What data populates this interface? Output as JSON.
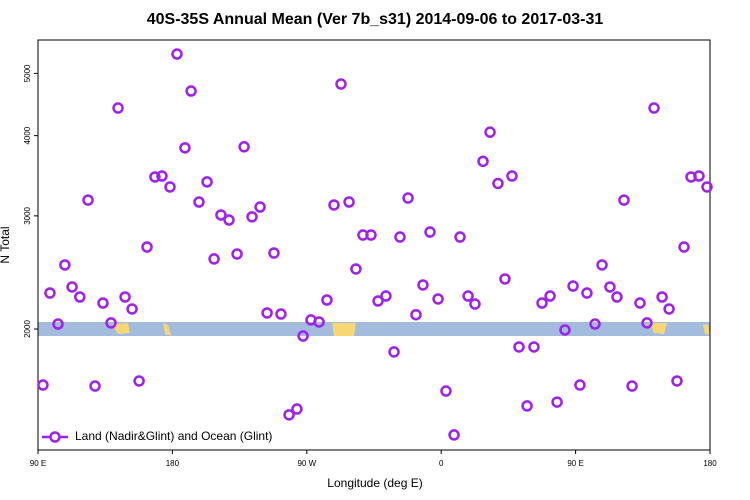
{
  "chart_data": {
    "type": "scatter",
    "title": "40S-35S Annual Mean (Ver 7b_s31)   2014-09-06 to 2017-03-31",
    "xlabel": "Longitude (deg E)",
    "ylabel": "N Total",
    "x": [
      93.3,
      98,
      103.4,
      108,
      112.8,
      118,
      123.5,
      128.2,
      133.5,
      138.9,
      143.6,
      148.3,
      153,
      157.7,
      163,
      168.3,
      173,
      178.4,
      183.1,
      188.4,
      192.5,
      197.8,
      203.2,
      207.9,
      212.5,
      217.9,
      223.3,
      228,
      233.3,
      238.7,
      243.4,
      248,
      252.7,
      258.1,
      263.4,
      267.5,
      272.8,
      278.2,
      283.5,
      288.2,
      292.9,
      298.3,
      302.9,
      307.6,
      313,
      317.7,
      323,
      328.4,
      332.4,
      337.8,
      343.1,
      347.8,
      352.5,
      357.9,
      363.2,
      368.6,
      372.6,
      378,
      382.6,
      388,
      392.7,
      398,
      402.7,
      407.4,
      412.1,
      417.5,
      422.1,
      427.5,
      432.9,
      437.6,
      442.9,
      448.3,
      452.9,
      457.6,
      463,
      467.7,
      473,
      477.7,
      482.4,
      487.8,
      493.1,
      497.8,
      502.5,
      507.9,
      512.6,
      517.9,
      522.6,
      527.3,
      532.6,
      538
    ],
    "series": [
      {
        "name": "Land (Nadir&Glint) and Ocean (Glint)",
        "color": "#a020f0",
        "values": [
          1636,
          2275,
          2036,
          2516,
          2325,
          2243,
          3175,
          1630,
          2195,
          2044,
          4416,
          2243,
          2149,
          1660,
          2683,
          3449,
          3461,
          3328,
          5360,
          3829,
          4694,
          3153,
          3389,
          2571,
          3010,
          2956,
          2617,
          3843,
          2990,
          3097,
          2118,
          2626,
          2110,
          1470,
          1501,
          1950,
          2066,
          2051,
          2219,
          3120,
          4813,
          3153,
          2480,
          2801,
          2801,
          2211,
          2251,
          1842,
          2781,
          3198,
          2105,
          2342,
          2831,
          2227,
          1601,
          1368,
          2781,
          2251,
          2187,
          3648,
          4050,
          3370,
          2393,
          3461,
          1875,
          1518,
          1875,
          2195,
          2251,
          1539,
          1993,
          2333,
          1636,
          2275,
          2036,
          2516,
          2325,
          2243,
          3175,
          1630,
          2195,
          2044,
          4416,
          2243,
          2149,
          1660,
          2683,
          3449,
          3461,
          3328
        ]
      }
    ],
    "xlim": [
      90,
      540
    ],
    "ylim": [
      1296,
      5636
    ],
    "ylog": true,
    "xticks": [
      {
        "value": 90,
        "label": "90 E"
      },
      180,
      {
        "value": 270,
        "label": "90 W"
      },
      {
        "value": 360,
        "label": "0"
      },
      {
        "value": 450,
        "label": "90 E"
      },
      {
        "value": 540,
        "label": "180"
      }
    ],
    "yticks": [
      2000,
      3000,
      4000,
      5000
    ],
    "legend": "bottom-left"
  }
}
